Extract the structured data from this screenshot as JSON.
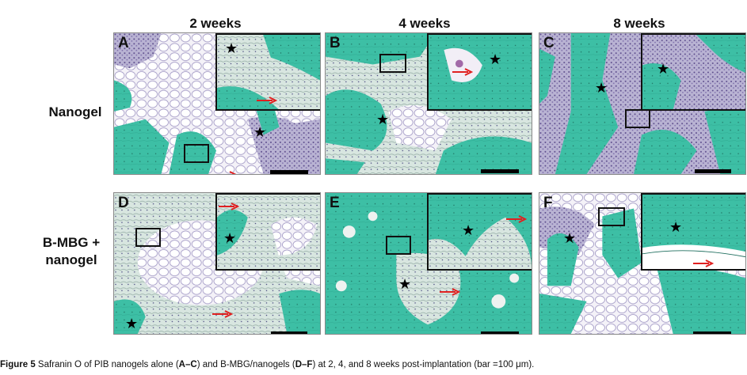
{
  "columns": [
    "2 weeks",
    "4 weeks",
    "8 weeks"
  ],
  "rows": {
    "nanogel": "Nanogel",
    "bmbg_line1": "B-MBG +",
    "bmbg_line2": "nanogel"
  },
  "panels": [
    "A",
    "B",
    "C",
    "D",
    "E",
    "F"
  ],
  "caption": {
    "figure_label": "Figure 5",
    "text_1": " Safranin O of PIB nanogels alone (",
    "range_1_start": "A",
    "dash_1": "–",
    "range_1_end": "C",
    "text_2": ") and B-MBG/nanogels (",
    "range_2_start": "D",
    "dash_2": "–",
    "range_2_end": "F",
    "text_3": ") at 2, 4, and 8 weeks post-implantation (bar =100 μm)."
  },
  "colors": {
    "bone_green": "#3dbfa5",
    "marrow_purple": "#6b5a9a",
    "arrow_red": "#e02020"
  }
}
